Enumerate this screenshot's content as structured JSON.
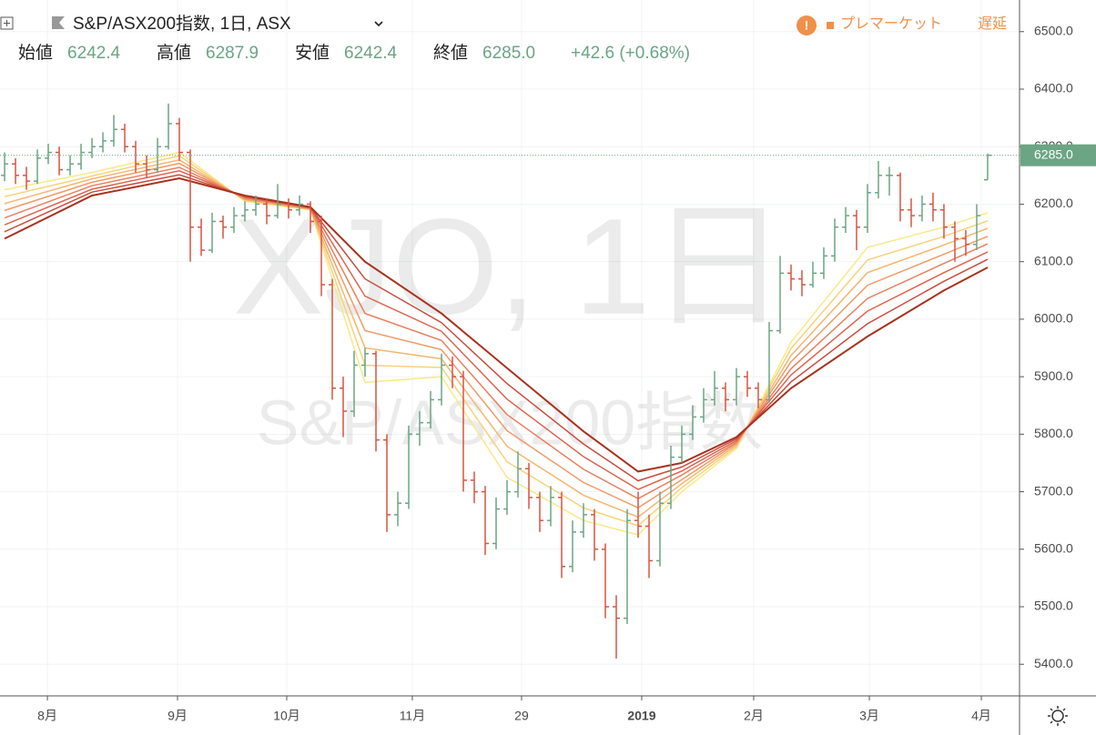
{
  "header": {
    "symbol": "S&P/ASX200指数, 1日, ASX",
    "open_label": "始値",
    "open": "6242.4",
    "high_label": "高値",
    "high": "6287.9",
    "low_label": "安値",
    "low": "6242.4",
    "close_label": "終値",
    "close": "6285.0",
    "change": "+42.6 (+0.68%)",
    "status": "プレマーケット",
    "delay": "遅延"
  },
  "chart_data": {
    "type": "ohlc",
    "watermark": [
      "XJO, 1日",
      "S&P/ASX200指数"
    ],
    "up_color": "#6ba583",
    "down_color": "#d75442",
    "ylim": [
      5345,
      6555
    ],
    "yticks": [
      {
        "value": 5400,
        "label": "5400.0"
      },
      {
        "value": 5500,
        "label": "5500.0"
      },
      {
        "value": 5600,
        "label": "5600.0"
      },
      {
        "value": 5700,
        "label": "5700.0"
      },
      {
        "value": 5800,
        "label": "5800.0"
      },
      {
        "value": 5900,
        "label": "5900.0"
      },
      {
        "value": 6000,
        "label": "6000.0"
      },
      {
        "value": 6100,
        "label": "6100.0"
      },
      {
        "value": 6200,
        "label": "6200.0"
      },
      {
        "value": 6300,
        "label": "6300.0"
      },
      {
        "value": 6400,
        "label": "6400.0"
      },
      {
        "value": 6500,
        "label": "6500.0"
      }
    ],
    "xlim": [
      -0.42,
      92.92
    ],
    "xticks": [
      {
        "value": 3.92,
        "label": "8月"
      },
      {
        "value": 15.83,
        "label": "9月"
      },
      {
        "value": 25.83,
        "label": "10月"
      },
      {
        "value": 37.33,
        "label": "11月"
      },
      {
        "value": 47.33,
        "label": "29"
      },
      {
        "value": 58.33,
        "label": "2019"
      },
      {
        "value": 68.58,
        "label": "2月"
      },
      {
        "value": 79.17,
        "label": "3月"
      },
      {
        "value": 89.42,
        "label": "4月"
      }
    ],
    "grid": true,
    "last_price": {
      "value": 6285,
      "label": "6285.0"
    },
    "ohlc": [
      [
        6250,
        6290,
        6240,
        6270
      ],
      [
        6270,
        6280,
        6235,
        6250
      ],
      [
        6250,
        6265,
        6225,
        6240
      ],
      [
        6240,
        6295,
        6235,
        6280
      ],
      [
        6280,
        6305,
        6270,
        6290
      ],
      [
        6290,
        6300,
        6250,
        6260
      ],
      [
        6260,
        6285,
        6250,
        6270
      ],
      [
        6270,
        6305,
        6260,
        6290
      ],
      [
        6290,
        6315,
        6280,
        6300
      ],
      [
        6300,
        6325,
        6290,
        6310
      ],
      [
        6310,
        6355,
        6300,
        6330
      ],
      [
        6330,
        6340,
        6290,
        6300
      ],
      [
        6300,
        6310,
        6255,
        6270
      ],
      [
        6270,
        6285,
        6245,
        6260
      ],
      [
        6260,
        6315,
        6255,
        6300
      ],
      [
        6300,
        6375,
        6295,
        6340
      ],
      [
        6340,
        6350,
        6275,
        6290
      ],
      [
        6290,
        6295,
        6100,
        6160
      ],
      [
        6160,
        6175,
        6110,
        6120
      ],
      [
        6120,
        6185,
        6115,
        6170
      ],
      [
        6170,
        6180,
        6140,
        6160
      ],
      [
        6160,
        6195,
        6150,
        6180
      ],
      [
        6180,
        6205,
        6170,
        6190
      ],
      [
        6190,
        6215,
        6180,
        6200
      ],
      [
        6200,
        6210,
        6165,
        6180
      ],
      [
        6180,
        6235,
        6175,
        6200
      ],
      [
        6200,
        6210,
        6175,
        6190
      ],
      [
        6190,
        6215,
        6180,
        6200
      ],
      [
        6200,
        6205,
        6150,
        6170
      ],
      [
        6170,
        6180,
        6040,
        6060
      ],
      [
        6060,
        6070,
        5860,
        5880
      ],
      [
        5880,
        5900,
        5795,
        5840
      ],
      [
        5840,
        5945,
        5830,
        5920
      ],
      [
        5920,
        5950,
        5900,
        5940
      ],
      [
        5940,
        5945,
        5770,
        5790
      ],
      [
        5790,
        5800,
        5630,
        5660
      ],
      [
        5660,
        5700,
        5640,
        5680
      ],
      [
        5680,
        5815,
        5670,
        5800
      ],
      [
        5800,
        5840,
        5780,
        5820
      ],
      [
        5820,
        5875,
        5810,
        5860
      ],
      [
        5860,
        5940,
        5850,
        5920
      ],
      [
        5920,
        5935,
        5880,
        5900
      ],
      [
        5900,
        5910,
        5700,
        5720
      ],
      [
        5720,
        5735,
        5680,
        5700
      ],
      [
        5700,
        5710,
        5590,
        5610
      ],
      [
        5610,
        5690,
        5600,
        5670
      ],
      [
        5670,
        5720,
        5660,
        5700
      ],
      [
        5700,
        5770,
        5690,
        5740
      ],
      [
        5740,
        5750,
        5670,
        5690
      ],
      [
        5690,
        5700,
        5630,
        5650
      ],
      [
        5650,
        5710,
        5640,
        5690
      ],
      [
        5690,
        5700,
        5550,
        5570
      ],
      [
        5570,
        5650,
        5560,
        5630
      ],
      [
        5630,
        5680,
        5620,
        5660
      ],
      [
        5660,
        5670,
        5580,
        5600
      ],
      [
        5600,
        5610,
        5480,
        5500
      ],
      [
        5500,
        5520,
        5410,
        5480
      ],
      [
        5480,
        5670,
        5470,
        5650
      ],
      [
        5650,
        5700,
        5620,
        5640
      ],
      [
        5640,
        5660,
        5550,
        5580
      ],
      [
        5580,
        5700,
        5570,
        5680
      ],
      [
        5680,
        5780,
        5670,
        5760
      ],
      [
        5760,
        5815,
        5750,
        5800
      ],
      [
        5800,
        5850,
        5790,
        5830
      ],
      [
        5830,
        5880,
        5820,
        5860
      ],
      [
        5860,
        5910,
        5850,
        5880
      ],
      [
        5880,
        5890,
        5840,
        5860
      ],
      [
        5860,
        5915,
        5850,
        5900
      ],
      [
        5900,
        5910,
        5865,
        5880
      ],
      [
        5880,
        5890,
        5845,
        5860
      ],
      [
        5860,
        5995,
        5855,
        5980
      ],
      [
        5980,
        6110,
        5975,
        6080
      ],
      [
        6080,
        6095,
        6050,
        6070
      ],
      [
        6070,
        6085,
        6040,
        6060
      ],
      [
        6060,
        6100,
        6055,
        6080
      ],
      [
        6080,
        6125,
        6070,
        6110
      ],
      [
        6110,
        6175,
        6100,
        6160
      ],
      [
        6160,
        6195,
        6150,
        6180
      ],
      [
        6180,
        6190,
        6120,
        6160
      ],
      [
        6160,
        6235,
        6150,
        6220
      ],
      [
        6220,
        6275,
        6210,
        6250
      ],
      [
        6250,
        6265,
        6215,
        6250
      ],
      [
        6250,
        6255,
        6170,
        6190
      ],
      [
        6190,
        6210,
        6160,
        6180
      ],
      [
        6180,
        6215,
        6170,
        6200
      ],
      [
        6200,
        6220,
        6170,
        6190
      ],
      [
        6190,
        6200,
        6140,
        6160
      ],
      [
        6160,
        6170,
        6100,
        6140
      ],
      [
        6140,
        6155,
        6110,
        6130
      ],
      [
        6130,
        6200,
        6120,
        6180
      ],
      [
        6242.4,
        6287.9,
        6242.4,
        6285
      ]
    ],
    "ribbon_x": [
      0,
      8,
      16,
      22,
      28,
      33,
      40,
      46,
      53,
      58,
      62,
      67,
      72,
      79,
      86,
      90
    ],
    "ribbons": [
      {
        "color": "#f7e98a",
        "values": [
          6225,
          6255,
          6290,
          6205,
          6190,
          5890,
          5900,
          5725,
          5650,
          5625,
          5700,
          5775,
          5960,
          6125,
          6160,
          6185
        ]
      },
      {
        "color": "#f8d27a",
        "values": [
          6213,
          6249,
          6284,
          6206,
          6191,
          5920,
          5916,
          5752,
          5672,
          5641,
          5707,
          5778,
          5949,
          6103,
          6144,
          6171
        ]
      },
      {
        "color": "#f5b66f",
        "values": [
          6201,
          6244,
          6277,
          6208,
          6191,
          5950,
          5931,
          5779,
          5694,
          5656,
          5714,
          5781,
          5937,
          6081,
          6129,
          6158
        ]
      },
      {
        "color": "#f09a66",
        "values": [
          6189,
          6238,
          6271,
          6209,
          6192,
          5980,
          5947,
          5806,
          5716,
          5672,
          5721,
          5784,
          5926,
          6059,
          6113,
          6144
        ]
      },
      {
        "color": "#e97f5e",
        "values": [
          6176,
          6232,
          6264,
          6211,
          6193,
          6010,
          5963,
          5834,
          5739,
          5688,
          5729,
          5786,
          5914,
          6036,
          6097,
          6131
        ]
      },
      {
        "color": "#dd6550",
        "values": [
          6164,
          6226,
          6258,
          6212,
          6194,
          6040,
          5979,
          5861,
          5761,
          5704,
          5736,
          5789,
          5903,
          6014,
          6081,
          6117
        ]
      },
      {
        "color": "#c94c3d",
        "values": [
          6152,
          6221,
          6251,
          6214,
          6194,
          6070,
          5994,
          5888,
          5783,
          5719,
          5743,
          5792,
          5891,
          5992,
          6066,
          6104
        ]
      },
      {
        "color": "#a8321e",
        "values": [
          6140,
          6215,
          6245,
          6215,
          6195,
          6100,
          6010,
          5915,
          5805,
          5735,
          5750,
          5795,
          5880,
          5970,
          6050,
          6090
        ]
      }
    ]
  }
}
